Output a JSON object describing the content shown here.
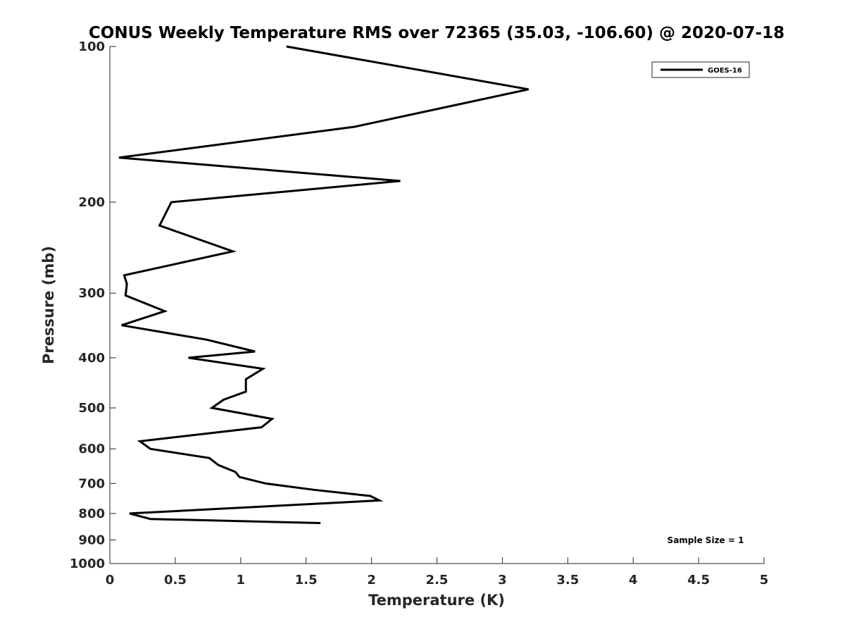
{
  "chart_data": {
    "type": "line",
    "title": "CONUS Weekly Temperature RMS over 72365 (35.03, -106.60) @ 2020-07-18",
    "xlabel": "Temperature (K)",
    "ylabel": "Pressure (mb)",
    "xlim": [
      0,
      5
    ],
    "ylim": [
      100,
      1000
    ],
    "y_scale": "log",
    "y_reversed": true,
    "xticks": [
      0,
      0.5,
      1,
      1.5,
      2,
      2.5,
      3,
      3.5,
      4,
      4.5,
      5
    ],
    "xtick_labels": [
      "0",
      "0.5",
      "1",
      "1.5",
      "2",
      "2.5",
      "3",
      "3.5",
      "4",
      "4.5",
      "5"
    ],
    "yticks": [
      100,
      200,
      300,
      400,
      500,
      600,
      700,
      800,
      900,
      1000
    ],
    "ytick_labels": [
      "100",
      "200",
      "300",
      "400",
      "500",
      "600",
      "700",
      "800",
      "900",
      "1000"
    ],
    "grid": false,
    "legend_position": "top-right",
    "annotation": "Sample Size = 1",
    "series": [
      {
        "name": "GOES-16",
        "color": "#000000",
        "points": [
          {
            "t": 1.35,
            "p": 100
          },
          {
            "t": 3.2,
            "p": 121
          },
          {
            "t": 1.87,
            "p": 143
          },
          {
            "t": 0.07,
            "p": 164
          },
          {
            "t": 2.22,
            "p": 182
          },
          {
            "t": 0.47,
            "p": 200
          },
          {
            "t": 0.38,
            "p": 222
          },
          {
            "t": 0.94,
            "p": 249
          },
          {
            "t": 0.11,
            "p": 277
          },
          {
            "t": 0.13,
            "p": 288
          },
          {
            "t": 0.12,
            "p": 303
          },
          {
            "t": 0.42,
            "p": 325
          },
          {
            "t": 0.09,
            "p": 346
          },
          {
            "t": 0.74,
            "p": 369
          },
          {
            "t": 1.11,
            "p": 389
          },
          {
            "t": 0.6,
            "p": 400
          },
          {
            "t": 1.17,
            "p": 420
          },
          {
            "t": 1.04,
            "p": 440
          },
          {
            "t": 1.04,
            "p": 465
          },
          {
            "t": 0.87,
            "p": 482
          },
          {
            "t": 0.78,
            "p": 500
          },
          {
            "t": 1.24,
            "p": 525
          },
          {
            "t": 1.16,
            "p": 545
          },
          {
            "t": 0.23,
            "p": 580
          },
          {
            "t": 0.31,
            "p": 600
          },
          {
            "t": 0.76,
            "p": 625
          },
          {
            "t": 0.83,
            "p": 645
          },
          {
            "t": 0.96,
            "p": 665
          },
          {
            "t": 0.99,
            "p": 680
          },
          {
            "t": 1.19,
            "p": 700
          },
          {
            "t": 1.56,
            "p": 720
          },
          {
            "t": 1.99,
            "p": 740
          },
          {
            "t": 2.06,
            "p": 755
          },
          {
            "t": 0.15,
            "p": 800
          },
          {
            "t": 0.31,
            "p": 820
          },
          {
            "t": 1.61,
            "p": 835
          }
        ]
      }
    ]
  }
}
